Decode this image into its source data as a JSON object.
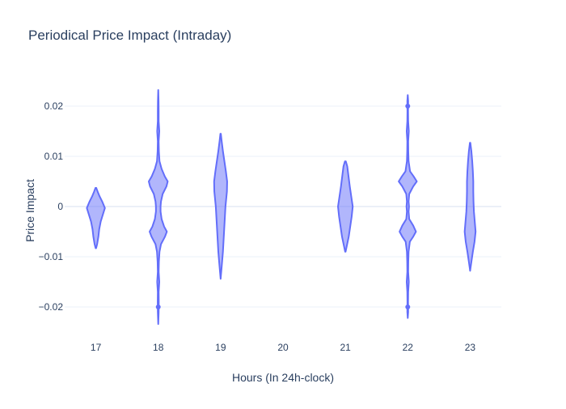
{
  "chart_data": {
    "type": "violin",
    "title": "Periodical Price Impact (Intraday)",
    "xlabel": "Hours (In 24h-clock)",
    "ylabel": "Price Impact",
    "categories": [
      "17",
      "18",
      "19",
      "20",
      "21",
      "22",
      "23"
    ],
    "ylim": [
      -0.025,
      0.025
    ],
    "yticks": [
      {
        "value": 0.02,
        "label": "0.02"
      },
      {
        "value": 0.01,
        "label": "0.01"
      },
      {
        "value": 0,
        "label": "0"
      },
      {
        "value": -0.01,
        "label": "−0.01"
      },
      {
        "value": -0.02,
        "label": "−0.02"
      }
    ],
    "grid": true,
    "legend": "none",
    "colors": {
      "fill": "rgba(99,110,250,0.5)",
      "line": "#636efa",
      "grid": "#ebf0f8",
      "zeroline": "#ebf0f8",
      "text": "#2a3f5f"
    },
    "violins": [
      {
        "category": "17",
        "profile": [
          [
            -0.0083,
            0.02
          ],
          [
            -0.0075,
            0.12
          ],
          [
            -0.006,
            0.24
          ],
          [
            -0.0045,
            0.32
          ],
          [
            -0.003,
            0.46
          ],
          [
            -0.0015,
            0.68
          ],
          [
            -0.0003,
            0.86
          ],
          [
            0.001,
            0.6
          ],
          [
            0.002,
            0.36
          ],
          [
            0.003,
            0.16
          ],
          [
            0.0037,
            0.04
          ]
        ],
        "outliers": []
      },
      {
        "category": "18",
        "profile": [
          [
            -0.0234,
            0.0
          ],
          [
            -0.021,
            0.04
          ],
          [
            -0.019,
            0.05
          ],
          [
            -0.017,
            0.04
          ],
          [
            -0.015,
            0.1
          ],
          [
            -0.013,
            0.04
          ],
          [
            -0.011,
            0.06
          ],
          [
            -0.009,
            0.12
          ],
          [
            -0.0075,
            0.26
          ],
          [
            -0.006,
            0.64
          ],
          [
            -0.005,
            0.82
          ],
          [
            -0.004,
            0.56
          ],
          [
            -0.0025,
            0.32
          ],
          [
            -0.001,
            0.22
          ],
          [
            0.0,
            0.22
          ],
          [
            0.001,
            0.26
          ],
          [
            0.0025,
            0.42
          ],
          [
            0.004,
            0.78
          ],
          [
            0.005,
            0.9
          ],
          [
            0.006,
            0.62
          ],
          [
            0.0075,
            0.32
          ],
          [
            0.009,
            0.12
          ],
          [
            0.011,
            0.06
          ],
          [
            0.013,
            0.04
          ],
          [
            0.015,
            0.1
          ],
          [
            0.017,
            0.04
          ],
          [
            0.019,
            0.04
          ],
          [
            0.021,
            0.03
          ],
          [
            0.0232,
            0.0
          ]
        ],
        "outliers": [
          -0.02
        ]
      },
      {
        "category": "19",
        "profile": [
          [
            -0.0144,
            0.0
          ],
          [
            -0.012,
            0.1
          ],
          [
            -0.009,
            0.22
          ],
          [
            -0.006,
            0.3
          ],
          [
            -0.003,
            0.38
          ],
          [
            0.0,
            0.46
          ],
          [
            0.003,
            0.6
          ],
          [
            0.005,
            0.62
          ],
          [
            0.007,
            0.5
          ],
          [
            0.009,
            0.36
          ],
          [
            0.011,
            0.22
          ],
          [
            0.013,
            0.1
          ],
          [
            0.0145,
            0.02
          ]
        ],
        "outliers": []
      },
      {
        "category": "20",
        "profile": [],
        "outliers": []
      },
      {
        "category": "21",
        "profile": [
          [
            -0.009,
            0.02
          ],
          [
            -0.008,
            0.12
          ],
          [
            -0.006,
            0.32
          ],
          [
            -0.004,
            0.46
          ],
          [
            -0.002,
            0.6
          ],
          [
            0.0,
            0.7
          ],
          [
            0.002,
            0.56
          ],
          [
            0.004,
            0.42
          ],
          [
            0.006,
            0.3
          ],
          [
            0.008,
            0.18
          ],
          [
            0.009,
            0.04
          ]
        ],
        "outliers": []
      },
      {
        "category": "22",
        "profile": [
          [
            -0.0222,
            0.0
          ],
          [
            -0.021,
            0.04
          ],
          [
            -0.019,
            0.03
          ],
          [
            -0.017,
            0.04
          ],
          [
            -0.015,
            0.1
          ],
          [
            -0.013,
            0.04
          ],
          [
            -0.011,
            0.05
          ],
          [
            -0.009,
            0.08
          ],
          [
            -0.007,
            0.2
          ],
          [
            -0.006,
            0.52
          ],
          [
            -0.005,
            0.78
          ],
          [
            -0.0038,
            0.52
          ],
          [
            -0.0025,
            0.14
          ],
          [
            -0.001,
            0.08
          ],
          [
            0.0,
            0.12
          ],
          [
            0.001,
            0.08
          ],
          [
            0.0025,
            0.14
          ],
          [
            0.004,
            0.52
          ],
          [
            0.005,
            0.86
          ],
          [
            0.006,
            0.56
          ],
          [
            0.007,
            0.22
          ],
          [
            0.009,
            0.08
          ],
          [
            0.011,
            0.05
          ],
          [
            0.013,
            0.04
          ],
          [
            0.015,
            0.1
          ],
          [
            0.017,
            0.04
          ],
          [
            0.019,
            0.03
          ],
          [
            0.021,
            0.04
          ],
          [
            0.0222,
            0.0
          ]
        ],
        "outliers": [
          0.02,
          -0.02
        ]
      },
      {
        "category": "23",
        "profile": [
          [
            -0.0128,
            0.0
          ],
          [
            -0.011,
            0.12
          ],
          [
            -0.009,
            0.26
          ],
          [
            -0.007,
            0.42
          ],
          [
            -0.005,
            0.52
          ],
          [
            -0.003,
            0.44
          ],
          [
            -0.001,
            0.36
          ],
          [
            0.001,
            0.32
          ],
          [
            0.003,
            0.3
          ],
          [
            0.005,
            0.3
          ],
          [
            0.007,
            0.26
          ],
          [
            0.009,
            0.2
          ],
          [
            0.011,
            0.12
          ],
          [
            0.0127,
            0.02
          ]
        ],
        "outliers": []
      }
    ]
  }
}
